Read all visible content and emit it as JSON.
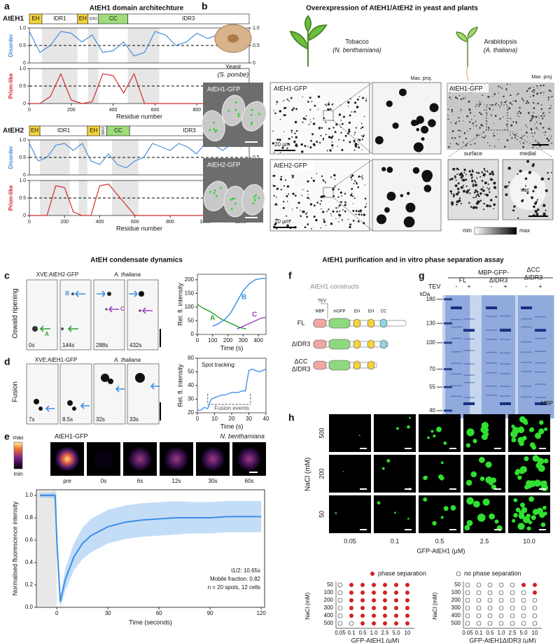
{
  "a": {
    "label": "a",
    "title": "AtEH1 domain architechture",
    "eh1": {
      "name": "AtEH1",
      "domains": [
        "EH",
        "IDR1",
        "EH",
        "IDR2",
        "CC",
        "IDR3"
      ],
      "disorder_label": "Disorder",
      "prion_label": "Prion-like",
      "xlabel": "Residue number",
      "xlim": [
        0,
        1050
      ],
      "xticks": [
        0,
        200,
        400,
        600,
        800,
        1000
      ],
      "ylim": [
        0,
        1
      ],
      "yticks": [
        0,
        0.5,
        {
          "value": 1,
          "label": "1.0"
        }
      ],
      "disorder_color": "#4a90d9",
      "prion_color": "#d62b2b",
      "x": [
        0,
        50,
        100,
        150,
        200,
        250,
        300,
        350,
        400,
        450,
        500,
        550,
        600,
        650,
        700,
        750,
        800,
        850,
        900,
        950,
        1000
      ],
      "disorder": [
        0.9,
        0.3,
        0.5,
        0.9,
        0.85,
        0.6,
        0.8,
        0.3,
        0.35,
        0.6,
        0.2,
        0.3,
        0.9,
        0.8,
        0.5,
        0.6,
        0.85,
        0.7,
        0.8,
        0.9,
        0.9
      ],
      "prion": [
        0,
        0,
        0.2,
        0.85,
        0.1,
        0,
        0.05,
        0.85,
        0.8,
        0.3,
        0.85,
        0,
        0,
        0,
        0,
        0,
        0,
        0,
        0,
        0,
        0
      ]
    },
    "eh2": {
      "name": "AtEH2",
      "domains": [
        "EH",
        "IDR1",
        "EH",
        "IDR2",
        "CC",
        "IDR3"
      ],
      "disorder_label": "Disorder",
      "prion_label": "Prion-like",
      "xlabel": "Residue number",
      "xlim": [
        0,
        1250
      ],
      "xticks": [
        0,
        200,
        400,
        600,
        800,
        1000,
        1200
      ],
      "ylim": [
        0,
        1
      ],
      "yticks": [
        0,
        0.5,
        {
          "value": 1,
          "label": "1.0"
        }
      ],
      "disorder_color": "#4a90d9",
      "prion_color": "#d62b2b",
      "x": [
        0,
        50,
        100,
        150,
        200,
        250,
        300,
        350,
        400,
        450,
        500,
        550,
        600,
        650,
        700,
        750,
        800,
        850,
        900,
        950,
        1000,
        1050,
        1100,
        1150,
        1200,
        1250
      ],
      "disorder": [
        0.9,
        0.4,
        0.5,
        0.85,
        0.9,
        0.7,
        0.9,
        0.4,
        0.3,
        0.6,
        0.3,
        0.2,
        0.4,
        0.5,
        0.9,
        0.8,
        0.7,
        0.9,
        0.8,
        0.6,
        0.9,
        0.85,
        0.7,
        0.9,
        0.8,
        0.9
      ],
      "prion": [
        0,
        0,
        0,
        0.85,
        0.8,
        0.1,
        0,
        0,
        0.85,
        0.9,
        0.6,
        0.3,
        0,
        0,
        0,
        0,
        0,
        0,
        0,
        0,
        0,
        0,
        0,
        0,
        0.4,
        0
      ]
    }
  },
  "b": {
    "label": "b",
    "title": "Overexpression of AtEH1/AtEH2 in yeast and plants",
    "yeast": "Yeast",
    "yeast_species": "(S. pombe)",
    "tobacco": "Tobacco",
    "tobacco_species": "(N. benthamiana)",
    "arabidopsis": "Arabidopsis",
    "arabidopsis_species": "(A. thaliana)",
    "max_proj": "Max. proj.",
    "eh1_gfp": "AtEH1-GFP",
    "eh2_gfp": "AtEH2-GFP",
    "scale": "20 µm",
    "surface": "surface",
    "medial": "medial",
    "vac": "vac",
    "min": "min",
    "max": "max"
  },
  "section_left": "AtEH condensate dynamics",
  "section_right": "AtEH1 purification and in vitro phase separation assay",
  "c": {
    "label": "c",
    "row_label": "Oswald ripening",
    "construct": "XVE:AtEH2-GFP",
    "species": "A. thaliana",
    "spot_letters": [
      "A",
      "B",
      "C"
    ],
    "times": [
      "0s",
      "144s",
      "288s",
      "432s"
    ],
    "chart": {
      "type": "line",
      "xlabel": "Time  (s)",
      "ylabel": "Rel. fl. intensity",
      "xlim": [
        0,
        450
      ],
      "ylim": [
        0,
        220
      ],
      "xticks": [
        0,
        100,
        200,
        300,
        400
      ],
      "yticks": [
        0,
        50,
        100,
        150,
        200
      ],
      "series": [
        {
          "name": "A",
          "color": "#2ca02c",
          "x": [
            0,
            40,
            80,
            120,
            160,
            200,
            240,
            280,
            320
          ],
          "values": [
            110,
            95,
            85,
            70,
            55,
            45,
            35,
            25,
            20
          ]
        },
        {
          "name": "B",
          "color": "#3a8ee6",
          "x": [
            100,
            140,
            180,
            220,
            260,
            300,
            340,
            380,
            420,
            450
          ],
          "values": [
            30,
            40,
            55,
            80,
            120,
            160,
            185,
            200,
            205,
            205
          ]
        },
        {
          "name": "C",
          "color": "#a040c0",
          "x": [
            260,
            300,
            340,
            380,
            420,
            450
          ],
          "values": [
            20,
            30,
            40,
            50,
            60,
            62
          ]
        }
      ]
    }
  },
  "d": {
    "label": "d",
    "row_label": "Fusion",
    "construct": "XVE:AtEH1-GFP",
    "species": "A. thaliana",
    "times": [
      "7s",
      "8.5s",
      "32s",
      "33s"
    ],
    "chart": {
      "type": "line",
      "xlabel": "Time (s)",
      "ylabel": "Rel. fl. intensity",
      "annotation": "Spot tracking:",
      "events_label": "Fusion events",
      "fusion_x": [
        6,
        31
      ],
      "xlim": [
        0,
        40
      ],
      "ylim": [
        20,
        60
      ],
      "xticks": [
        0,
        10,
        20,
        30,
        40
      ],
      "yticks": [
        20,
        30,
        40,
        50,
        60
      ],
      "color": "#3a8ee6",
      "x": [
        0,
        2,
        4,
        6,
        8,
        10,
        12,
        14,
        16,
        18,
        20,
        22,
        24,
        26,
        28,
        30,
        32,
        34,
        36,
        38,
        40
      ],
      "values": [
        22,
        22,
        24,
        23,
        30,
        31,
        32,
        33,
        33,
        34,
        35,
        35,
        35,
        36,
        36,
        51,
        52,
        51,
        50,
        51,
        52
      ]
    }
  },
  "e": {
    "label": "e",
    "cbar_max": "max",
    "cbar_min": "min",
    "construct": "AtEH1-GFP",
    "species": "N. benthamiana",
    "frames": [
      "pre",
      "0s",
      "6s",
      "12s",
      "30s",
      "60s"
    ],
    "chart": {
      "type": "line",
      "xlabel": "Time (seconds)",
      "ylabel": "Normalised fluorescence intensity",
      "stats": [
        "t1/2: 10.65s",
        "Mobile fraction: 0.82",
        "n = 20 spots, 12 cells"
      ],
      "xlim": [
        -12,
        122
      ],
      "ylim": [
        0,
        1.05
      ],
      "xticks": [
        0,
        30,
        60,
        90,
        120
      ],
      "yticks": [
        {
          "value": 0,
          "label": "0.0"
        },
        0.2,
        0.4,
        0.6,
        0.8,
        {
          "value": 1,
          "label": "1.0"
        }
      ],
      "color": "#3a8ee6",
      "x": [
        -10,
        -5,
        -1,
        0,
        2,
        5,
        10,
        15,
        20,
        30,
        40,
        50,
        60,
        70,
        80,
        90,
        100,
        110,
        120
      ],
      "values": [
        1,
        1,
        1,
        0.6,
        0.05,
        0.25,
        0.45,
        0.57,
        0.64,
        0.72,
        0.76,
        0.78,
        0.79,
        0.8,
        0.8,
        0.8,
        0.81,
        0.81,
        0.81
      ],
      "errors": [
        0.02,
        0.02,
        0.03,
        0.05,
        0.05,
        0.1,
        0.12,
        0.14,
        0.15,
        0.15,
        0.15,
        0.15,
        0.15,
        0.15,
        0.14,
        0.14,
        0.14,
        0.14,
        0.14
      ]
    }
  },
  "f": {
    "label": "f",
    "title": "AtEH1 constructs",
    "constructs": [
      "FL",
      "ΔIDR3",
      "ΔCC",
      "ΔIDR3"
    ],
    "parts": [
      "MBP",
      "TEV",
      "mGFP",
      "EH",
      "EH",
      "CC"
    ]
  },
  "g": {
    "label": "g",
    "title": "MBP-GFP-",
    "tev": "TEV",
    "minus": "-",
    "plus": "+",
    "lanes": [
      "FL",
      "ΔIDR3",
      "ΔCC",
      "ΔIDR3"
    ],
    "kda": "kDa",
    "markers": [
      180,
      130,
      100,
      70,
      55,
      40
    ],
    "mbp": "-MBP"
  },
  "h": {
    "label": "h",
    "ylabel": "NaCl (mM)",
    "rows": [
      "500",
      "200",
      "50"
    ],
    "cols": [
      "0.05",
      "0.1",
      "0.5",
      "2.5",
      "10.0"
    ],
    "xlabel": "GFP-AtEH1 (µM)",
    "legend": [
      "phase separation",
      "no phase separation"
    ],
    "filled_color": "#d42020",
    "grid_rows": [
      "50",
      "100",
      "200",
      "300",
      "400",
      "500"
    ],
    "grid_cols": [
      "0.05",
      "0.1",
      "0.5",
      "1.0",
      "2.5",
      "5.0",
      "10"
    ],
    "grid_ylabel": "NaCl (mM)",
    "grid1": {
      "xlabel": "GFP-AtEH1 (µM)",
      "phase": [
        [
          false,
          true,
          true,
          true,
          true,
          true,
          true
        ],
        [
          false,
          true,
          true,
          true,
          true,
          true,
          true
        ],
        [
          false,
          true,
          true,
          true,
          true,
          true,
          true
        ],
        [
          false,
          true,
          true,
          true,
          true,
          true,
          true
        ],
        [
          false,
          true,
          true,
          true,
          true,
          true,
          true
        ],
        [
          false,
          false,
          true,
          true,
          true,
          true,
          true
        ]
      ]
    },
    "grid2": {
      "xlabel": "GFP-AtEH1ΔIDR3 (µM)",
      "phase": [
        [
          false,
          false,
          false,
          false,
          false,
          true,
          true
        ],
        [
          false,
          false,
          false,
          false,
          false,
          false,
          true
        ],
        [
          false,
          false,
          false,
          false,
          false,
          false,
          false
        ],
        [
          false,
          false,
          false,
          false,
          false,
          false,
          false
        ],
        [
          false,
          false,
          false,
          false,
          false,
          false,
          false
        ],
        [
          false,
          false,
          false,
          false,
          false,
          false,
          false
        ]
      ]
    }
  }
}
